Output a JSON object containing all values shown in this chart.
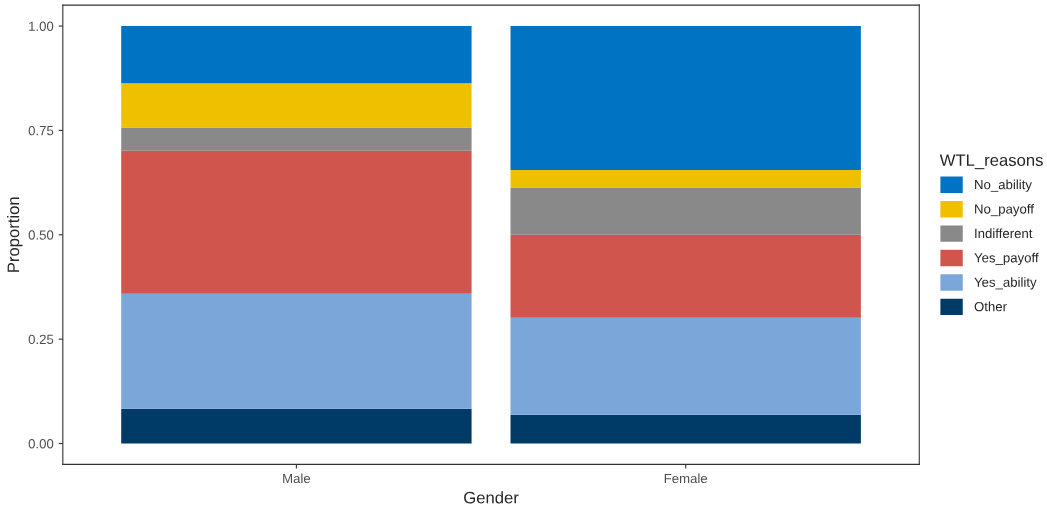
{
  "chart_data": {
    "type": "bar",
    "stacked": true,
    "xlabel": "Gender",
    "ylabel": "Proportion",
    "legend_title": "WTL_reasons",
    "legend": "right",
    "grid": false,
    "categories": [
      "Male",
      "Female"
    ],
    "ylim": [
      -0.05,
      1.05
    ],
    "yticks": [
      {
        "value": 0,
        "label": "0.00"
      },
      {
        "value": 0.25,
        "label": "0.25"
      },
      {
        "value": 0.5,
        "label": "0.50"
      },
      {
        "value": 0.75,
        "label": "0.75"
      },
      {
        "value": 1,
        "label": "1.00"
      }
    ],
    "series": [
      {
        "name": "Other",
        "color": "#003a66",
        "values": [
          0.083,
          0.069
        ]
      },
      {
        "name": "Yes_ability",
        "color": "#7ba6da",
        "values": [
          0.276,
          0.232
        ]
      },
      {
        "name": "Yes_payoff",
        "color": "#cf554d",
        "values": [
          0.342,
          0.199
        ]
      },
      {
        "name": "Indifferent",
        "color": "#898989",
        "values": [
          0.056,
          0.113
        ]
      },
      {
        "name": "No_payoff",
        "color": "#efc000",
        "values": [
          0.106,
          0.042
        ]
      },
      {
        "name": "No_ability",
        "color": "#0073c2",
        "values": [
          0.137,
          0.345
        ]
      }
    ]
  }
}
